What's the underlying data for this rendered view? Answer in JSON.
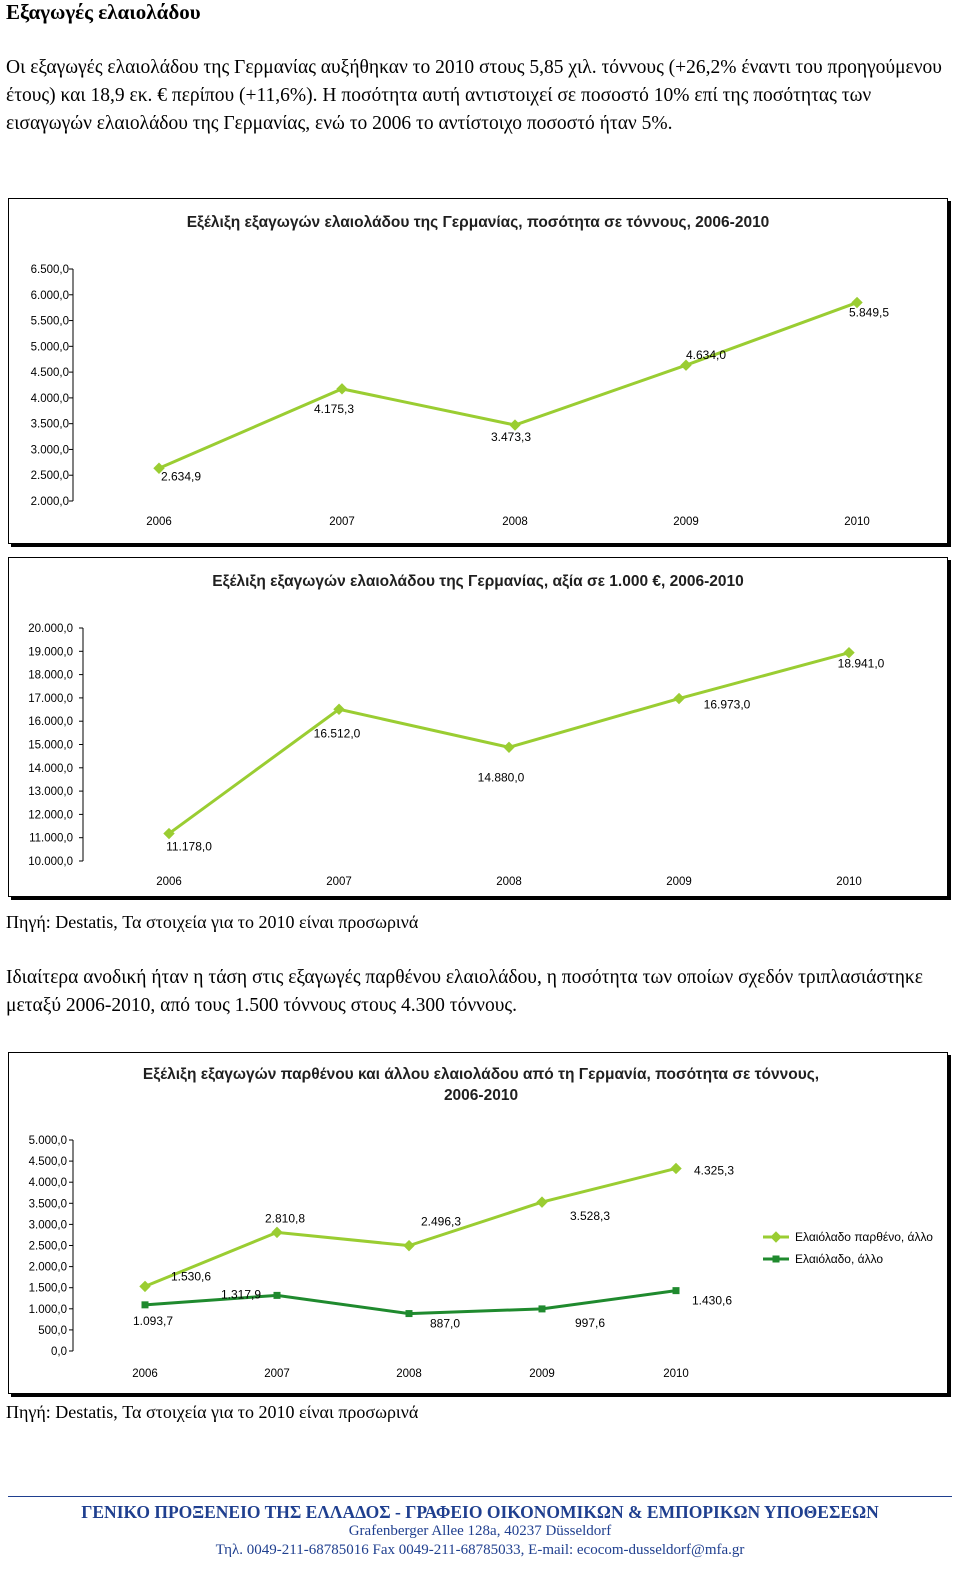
{
  "heading": "Εξαγωγές ελαιολάδου",
  "para1": "Οι εξαγωγές ελαιολάδου της Γερμανίας αυξήθηκαν το 2010 στους 5,85 χιλ. τόννους (+26,2% έναντι του προηγούμενου έτους) και 18,9 εκ. € περίπου (+11,6%). Η ποσότητα αυτή αντιστοιχεί σε ποσοστό 10% επί της ποσότητας των εισαγωγών ελαιολάδου της Γερμανίας, ενώ το 2006 το αντίστοιχο ποσοστό ήταν 5%.",
  "source1": "Πηγή: Destatis, Τα στοιχεία για το 2010 είναι προσωρινά",
  "para2": "Ιδιαίτερα ανοδική ήταν η τάση στις εξαγωγές παρθένου ελαιολάδου, η ποσότητα των οποίων σχεδόν τριπλασιάστηκε μεταξύ 2006-2010, από τους 1.500 τόννους στους 4.300 τόννους.",
  "source2": "Πηγή: Destatis, Τα στοιχεία για το 2010 είναι προσωρινά",
  "footer": {
    "line1": "ΓΕΝΙΚΟ ΠΡΟΞΕΝΕΙΟ ΤΗΣ ΕΛΛΑΔΟΣ - ΓΡΑΦΕΙΟ ΟΙΚΟΝΟΜΙΚΩΝ & ΕΜΠΟΡΙΚΩΝ ΥΠΟΘΕΣΕΩΝ",
    "line2": "Grafenberger Allee 128a, 40237 Düsseldorf",
    "line3": "Τηλ. 0049-211-68785016 Fax 0049-211-68785033, E-mail: ecocom-dusseldorf@mfa.gr"
  },
  "colors": {
    "light_green": "#9acd32",
    "dark_green": "#1f8a2e",
    "footer_blue": "#1f3f8f"
  },
  "chart_data": [
    {
      "type": "line",
      "title": "Εξέλιξη εξαγωγών ελαιολάδου της Γερμανίας, ποσότητα σε τόννους, 2006-2010",
      "categories": [
        "2006",
        "2007",
        "2008",
        "2009",
        "2010"
      ],
      "ylim": [
        2000,
        6500
      ],
      "yticks": [
        "6.500,0",
        "6.000,0",
        "5.500,0",
        "5.000,0",
        "4.500,0",
        "4.000,0",
        "3.500,0",
        "3.000,0",
        "2.500,0",
        "2.000,0"
      ],
      "series": [
        {
          "values": [
            2634.9,
            4175.3,
            3473.3,
            4634.0,
            5849.5
          ],
          "labels": [
            "2.634,9",
            "4.175,3",
            "3.473,3",
            "4.634,0",
            "5.849,5"
          ]
        }
      ],
      "grid": false
    },
    {
      "type": "line",
      "title": "Εξέλιξη εξαγωγών ελαιολάδου της Γερμανίας, αξία σε 1.000 €, 2006-2010",
      "categories": [
        "2006",
        "2007",
        "2008",
        "2009",
        "2010"
      ],
      "ylim": [
        10000,
        20000
      ],
      "yticks": [
        "20.000,0",
        "19.000,0",
        "18.000,0",
        "17.000,0",
        "16.000,0",
        "15.000,0",
        "14.000,0",
        "13.000,0",
        "12.000,0",
        "11.000,0",
        "10.000,0"
      ],
      "series": [
        {
          "values": [
            11178.0,
            16512.0,
            14880.0,
            16973.0,
            18941.0
          ],
          "labels": [
            "11.178,0",
            "16.512,0",
            "14.880,0",
            "16.973,0",
            "18.941,0"
          ]
        }
      ],
      "grid": false
    },
    {
      "type": "line",
      "title": "Εξέλιξη εξαγωγών παρθένου και άλλου ελαιολάδου από τη Γερμανία, ποσότητα σε τόννους, 2006-2010",
      "categories": [
        "2006",
        "2007",
        "2008",
        "2009",
        "2010"
      ],
      "ylim": [
        0,
        5000
      ],
      "yticks": [
        "5.000,0",
        "4.500,0",
        "4.000,0",
        "3.500,0",
        "3.000,0",
        "2.500,0",
        "2.000,0",
        "1.500,0",
        "1.000,0",
        "500,0",
        "0,0"
      ],
      "series": [
        {
          "name": "Ελαιόλαδο παρθένο, άλλο",
          "values": [
            1530.6,
            2810.8,
            2496.3,
            3528.3,
            4325.3
          ],
          "labels": [
            "1.530,6",
            "2.810,8",
            "2.496,3",
            "3.528,3",
            "4.325,3"
          ]
        },
        {
          "name": "Ελαιόλαδο, άλλο",
          "values": [
            1093.7,
            1317.9,
            887.0,
            997.6,
            1430.6
          ],
          "labels": [
            "1.093,7",
            "1.317,9",
            "887,0",
            "997,6",
            "1.430,6"
          ]
        }
      ],
      "legend": "right",
      "grid": false
    }
  ]
}
